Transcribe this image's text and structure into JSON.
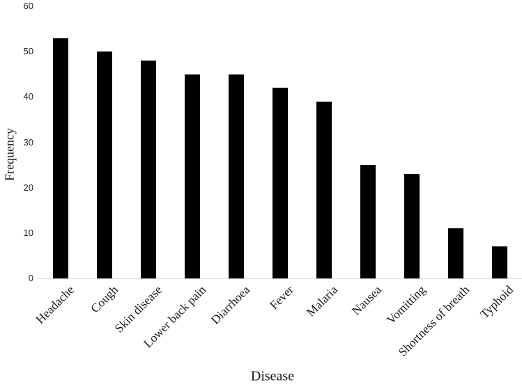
{
  "figure": {
    "background": "#ffffff",
    "bar_color": "#000000",
    "axis_line_color": "#d9d9d9",
    "text_color": "#000000"
  },
  "chart_data": {
    "type": "bar",
    "title": "",
    "xlabel": "Disease",
    "ylabel": "Frequency",
    "categories": [
      "Headache",
      "Cough",
      "Skin disease",
      "Lower back pain",
      "Diarrhoea",
      "Fever",
      "Malaria",
      "Nausea",
      "Vomitting",
      "Shortness of breath",
      "Typhoid"
    ],
    "values": [
      53,
      50,
      48,
      45,
      45,
      42,
      39,
      25,
      23,
      11,
      7
    ],
    "yticks": [
      0,
      10,
      20,
      30,
      40,
      50,
      60
    ],
    "ylim": [
      0,
      60
    ],
    "ytick_step": 10,
    "grid": false,
    "legend": "none",
    "bar_color": "#000000",
    "orientation": "vertical",
    "x_label_rotation_deg": 45
  }
}
